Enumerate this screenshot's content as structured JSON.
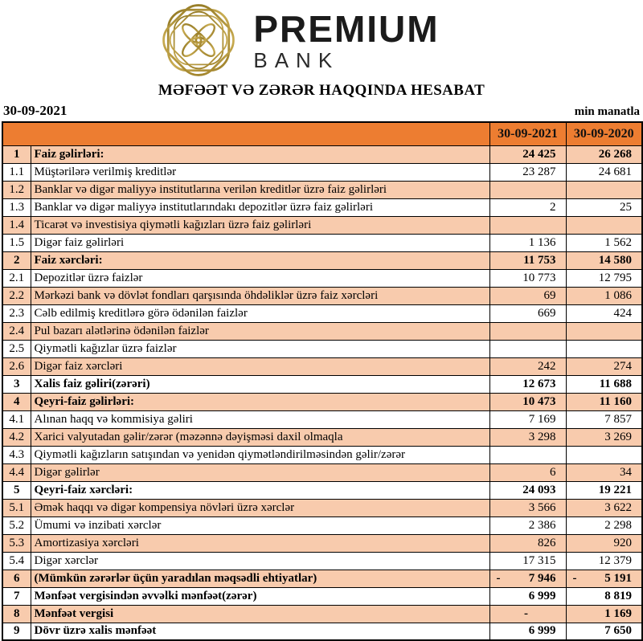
{
  "brand": {
    "name": "PREMIUM",
    "sub": "BANK",
    "logo_icon": "interlaced-knot-emblem"
  },
  "report": {
    "title": "MƏFƏƏT VƏ ZƏRƏR HAQQINDA HESABAT",
    "date_label": "30-09-2021",
    "unit_label": "min manatla"
  },
  "table": {
    "columns": [
      "30-09-2021",
      "30-09-2020"
    ],
    "rows": [
      {
        "no": "1",
        "label": "Faiz gəlirləri:",
        "v1": "24 425",
        "v2": "26 268",
        "bold": true
      },
      {
        "no": "1.1",
        "label": "Müştərilərə verilmiş kreditlər",
        "v1": "23 287",
        "v2": "24 681"
      },
      {
        "no": "1.2",
        "label": "Banklar və digər maliyyə institutlarına verilən kreditlər üzrə faiz gəlirləri",
        "v1": "",
        "v2": ""
      },
      {
        "no": "1.3",
        "label": "Banklar və digər maliyyə institutlarındakı depozitlər üzrə faiz gəlirləri",
        "v1": "2",
        "v2": "25"
      },
      {
        "no": "1.4",
        "label": "Ticarət və investisiya qiymətli kağızları üzrə faiz gəlirləri",
        "v1": "",
        "v2": ""
      },
      {
        "no": "1.5",
        "label": "Digər faiz gəlirləri",
        "v1": "1 136",
        "v2": "1 562"
      },
      {
        "no": "2",
        "label": "Faiz xərcləri:",
        "v1": "11 753",
        "v2": "14 580",
        "bold": true
      },
      {
        "no": "2.1",
        "label": "Depozitlər üzrə faizlər",
        "v1": "10 773",
        "v2": "12 795"
      },
      {
        "no": "2.2",
        "label": "Mərkəzi bank və dövlət fondları qarşısında öhdəliklər üzrə faiz xərcləri",
        "v1": "69",
        "v2": "1 086"
      },
      {
        "no": "2.3",
        "label": "Cəlb edilmiş kreditlərə görə ödənilən faizlər",
        "v1": "669",
        "v2": "424"
      },
      {
        "no": "2.4",
        "label": "Pul bazarı alətlərinə ödənilən faizlər",
        "v1": "",
        "v2": ""
      },
      {
        "no": "2.5",
        "label": "Qiymətli kağızlar üzrə faizlər",
        "v1": "",
        "v2": ""
      },
      {
        "no": "2.6",
        "label": "Digər faiz xərcləri",
        "v1": "242",
        "v2": "274"
      },
      {
        "no": "3",
        "label": "Xalis faiz gəliri(zərəri)",
        "v1": "12 673",
        "v2": "11 688",
        "bold": true
      },
      {
        "no": "4",
        "label": "Qeyri-faiz gəlirləri:",
        "v1": "10 473",
        "v2": "11 160",
        "bold": true
      },
      {
        "no": "4.1",
        "label": "Alınan haqq və kommisiya gəliri",
        "v1": "7 169",
        "v2": "7 857"
      },
      {
        "no": "4.2",
        "label": "Xarici valyutadan gəlir/zərər (məzənnə dəyişməsi daxil olmaqla",
        "v1": "3 298",
        "v2": "3 269"
      },
      {
        "no": "4.3",
        "label": "Qiymətli kağızların satışından və yenidən qiymətləndirilməsindən gəlir/zərər",
        "v1": "",
        "v2": ""
      },
      {
        "no": "4.4",
        "label": "Digər gəlirlər",
        "v1": "6",
        "v2": "34"
      },
      {
        "no": "5",
        "label": "Qeyri-faiz xərcləri:",
        "v1": "24 093",
        "v2": "19 221",
        "bold": true
      },
      {
        "no": "5.1",
        "label": "Əmək haqqı və digər kompensiya növləri üzrə xərclər",
        "v1": "3 566",
        "v2": "3 622"
      },
      {
        "no": "5.2",
        "label": "Ümumi və inzibati xərclər",
        "v1": "2 386",
        "v2": "2 298"
      },
      {
        "no": "5.3",
        "label": "Amortizasiya xərcləri",
        "v1": "826",
        "v2": "920"
      },
      {
        "no": "5.4",
        "label": "Digər xərclər",
        "v1": "17 315",
        "v2": "12 379"
      },
      {
        "no": "6",
        "label": "(Mümkün zərərlər üçün yaradılan məqsədli ehtiyatlar)",
        "v1": "7 946",
        "v2": "5 191",
        "bold": true,
        "negative": true
      },
      {
        "no": "7",
        "label": "Mənfəət vergisindən əvvəlki mənfəət(zərər)",
        "v1": "6 999",
        "v2": "8 819",
        "bold": true
      },
      {
        "no": "8",
        "label": "Mənfəət vergisi",
        "v1": "-",
        "v2": "1 169",
        "bold": true
      },
      {
        "no": "9",
        "label": "Dövr üzrə xalis mənfəət",
        "v1": "6 999",
        "v2": "7 650",
        "bold": true
      }
    ]
  },
  "colors": {
    "header_orange": "#ED7D31",
    "row_peach": "#F8CBAD",
    "row_white": "#FFFFFF",
    "border_black": "#000000",
    "logo_gold_dark": "#8E741F",
    "logo_gold_light": "#C9AC52"
  }
}
